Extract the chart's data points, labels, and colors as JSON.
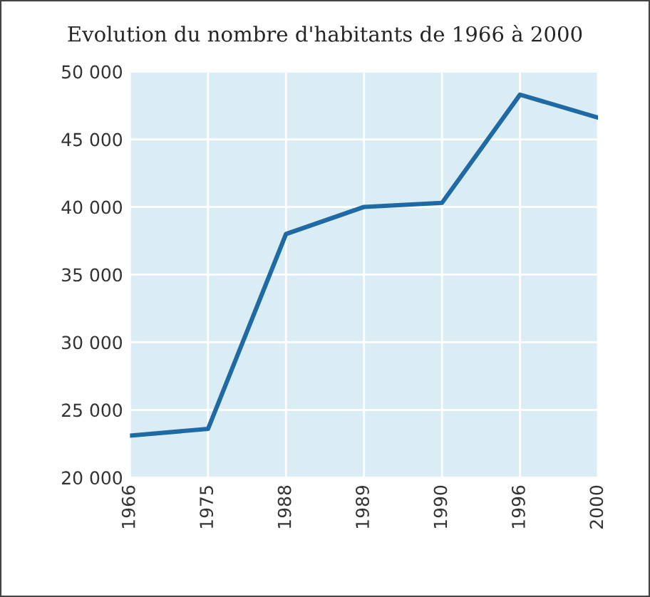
{
  "chart_data": {
    "type": "line",
    "title": "Evolution du nombre d'habitants de 1966 à 2000",
    "categories": [
      "1966",
      "1975",
      "1988",
      "1989",
      "1990",
      "1996",
      "2000"
    ],
    "series": [
      {
        "color": "#1f6aa5",
        "values": [
          23100,
          23600,
          38000,
          40000,
          40300,
          48300,
          46600
        ]
      }
    ],
    "ylim": [
      20000,
      50000
    ],
    "yticks": [
      {
        "value": 20000,
        "label": "20 000"
      },
      {
        "value": 25000,
        "label": "25 000"
      },
      {
        "value": 30000,
        "label": "30 000"
      },
      {
        "value": 35000,
        "label": "35 000"
      },
      {
        "value": 40000,
        "label": "40 000"
      },
      {
        "value": 45000,
        "label": "45 000"
      },
      {
        "value": 50000,
        "label": "50 000"
      }
    ],
    "grid": true,
    "legend": false,
    "marker": "none",
    "line_style": "solid"
  }
}
